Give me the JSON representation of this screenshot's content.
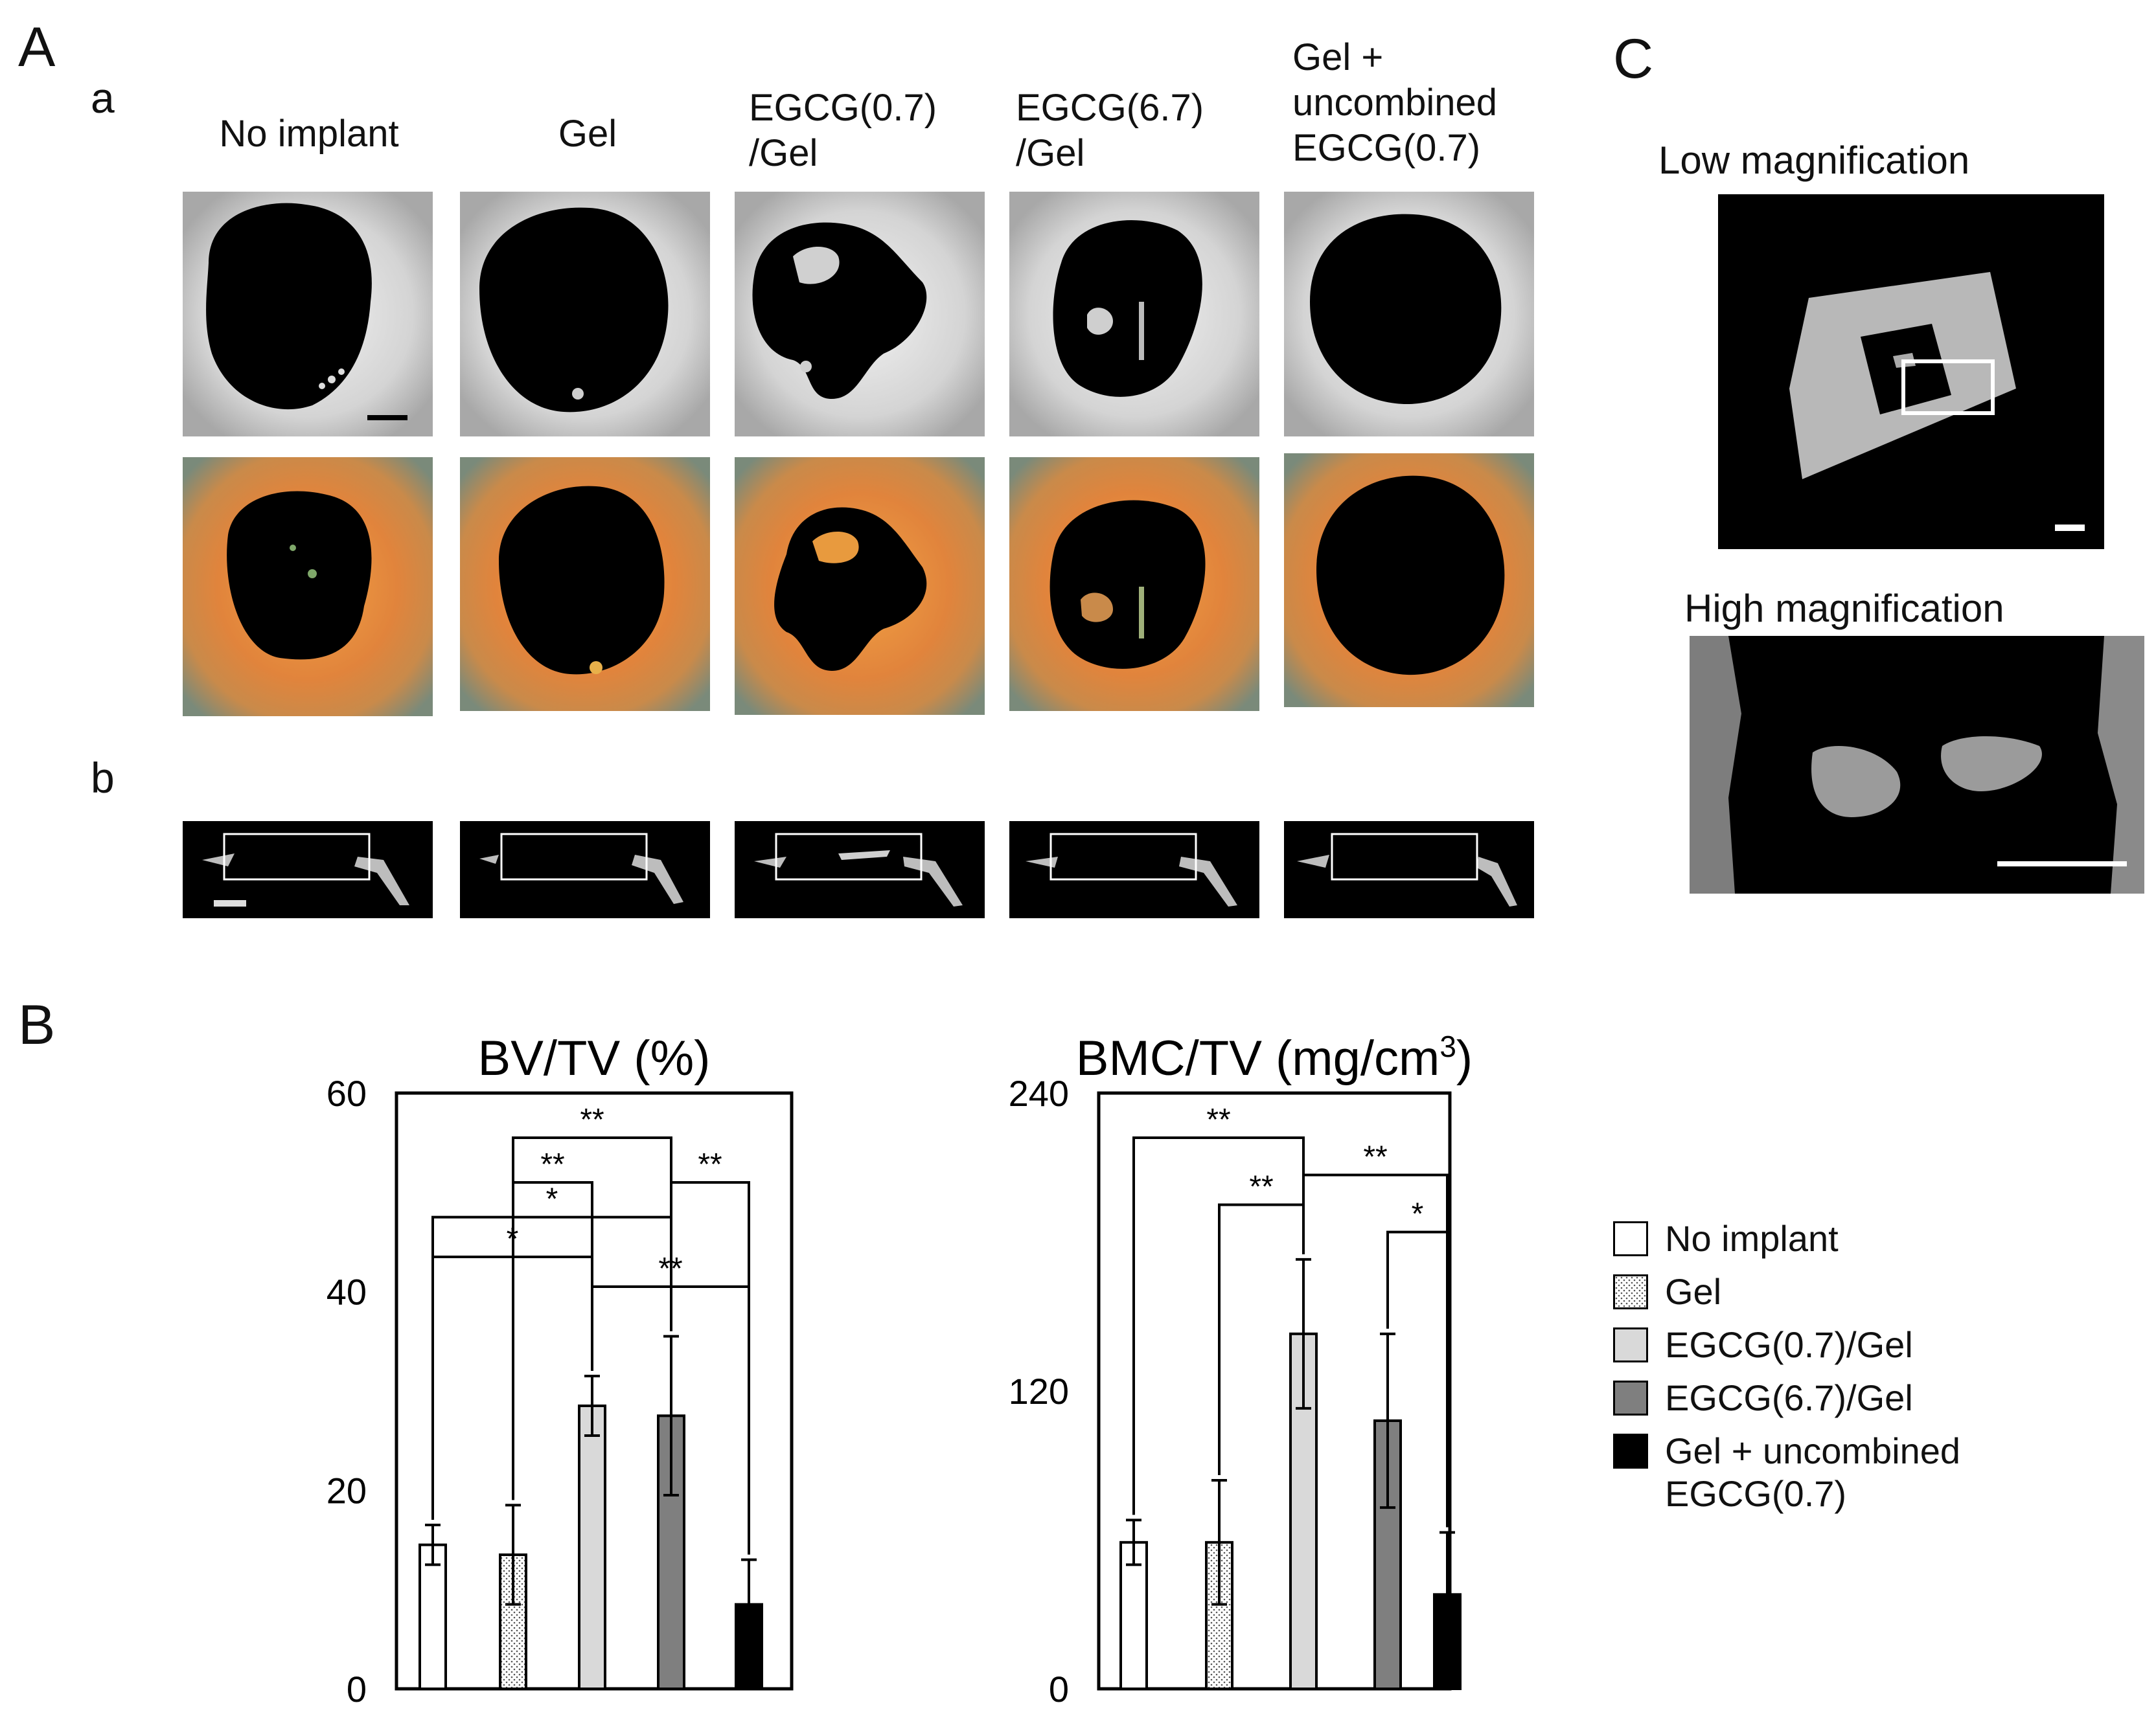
{
  "panels": {
    "A": "A",
    "a": "a",
    "b": "b",
    "B": "B",
    "C": "C"
  },
  "columns": [
    {
      "label": "No implant"
    },
    {
      "label": "Gel"
    },
    {
      "label": "EGCG(0.7)\n/Gel"
    },
    {
      "label": "EGCG(6.7)\n/Gel"
    },
    {
      "label": "Gel +\nuncombined\nEGCG(0.7)"
    }
  ],
  "panel_c": {
    "low_label": "Low magnification",
    "high_label": "High magnification"
  },
  "legend": [
    {
      "label": "No implant",
      "fill": "#ffffff",
      "pattern": "none"
    },
    {
      "label": "Gel",
      "fill": "#ffffff",
      "pattern": "dots"
    },
    {
      "label": "EGCG(0.7)/Gel",
      "fill": "#d9d9d9",
      "pattern": "none"
    },
    {
      "label": "EGCG(6.7)/Gel",
      "fill": "#7f7f7f",
      "pattern": "none"
    },
    {
      "label": "Gel + uncombined\nEGCG(0.7)",
      "fill": "#000000",
      "pattern": "none"
    }
  ],
  "chart_data": [
    {
      "type": "bar",
      "title": "BV/TV (%)",
      "categories": [
        "No implant",
        "Gel",
        "EGCG(0.7)/Gel",
        "EGCG(6.7)/Gel",
        "Gel + uncombined EGCG(0.7)"
      ],
      "values": [
        14.5,
        13.5,
        28.5,
        27.5,
        8.5
      ],
      "errors": [
        2,
        5,
        3,
        8,
        4.5
      ],
      "ylim": [
        0,
        60
      ],
      "yticks": [
        "0",
        "20",
        "40",
        "60"
      ],
      "significance": [
        "*",
        "*",
        "**",
        "**",
        "**",
        "**"
      ]
    },
    {
      "type": "bar",
      "title": "BMC/TV (mg/cm",
      "title_sup": "3",
      "title_end": ")",
      "categories": [
        "No implant",
        "Gel",
        "EGCG(0.7)/Gel",
        "EGCG(6.7)/Gel",
        "Gel + uncombined EGCG(0.7)"
      ],
      "values": [
        59,
        59,
        143,
        108,
        38
      ],
      "errors": [
        9,
        25,
        30,
        35,
        25
      ],
      "ylim": [
        0,
        240
      ],
      "yticks": [
        "0",
        "120",
        "240"
      ],
      "significance": [
        "**",
        "**",
        "**",
        "*"
      ]
    }
  ]
}
